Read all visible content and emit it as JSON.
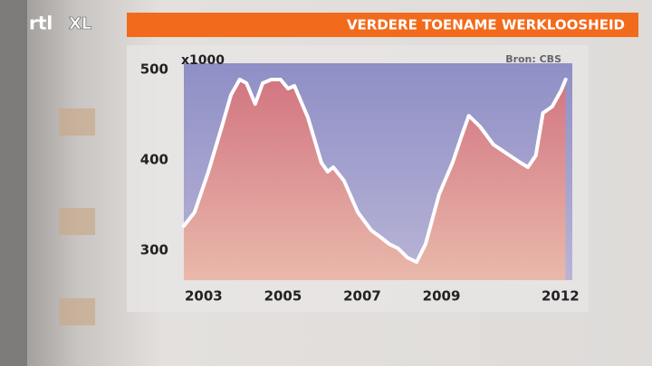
{
  "logo": [
    "rtl",
    "XL"
  ],
  "chart_data": {
    "type": "area",
    "title": "VERDERE TOENAME WERKLOOSHEID",
    "unit_label": "x1000",
    "source": "Bron: CBS",
    "line_color": "#ffffff",
    "fill_color": "#e0786a",
    "x": [
      2002.5,
      2002.77,
      2003.12,
      2003.46,
      2003.69,
      2003.91,
      2004.08,
      2004.3,
      2004.49,
      2004.71,
      2004.94,
      2005.13,
      2005.29,
      2005.63,
      2005.97,
      2006.13,
      2006.27,
      2006.54,
      2006.89,
      2007.23,
      2007.45,
      2007.68,
      2007.91,
      2008.14,
      2008.37,
      2008.6,
      2008.94,
      2009.28,
      2009.51,
      2009.69,
      2009.97,
      2010.31,
      2010.65,
      2010.99,
      2011.18,
      2011.38,
      2011.56,
      2011.79,
      2012.02,
      2012.13
    ],
    "values": [
      327,
      342,
      387,
      437,
      472,
      489,
      485,
      462,
      485,
      489,
      489,
      479,
      482,
      447,
      397,
      387,
      392,
      377,
      342,
      322,
      315,
      307,
      302,
      292,
      287,
      307,
      362,
      397,
      427,
      449,
      437,
      417,
      407,
      397,
      392,
      405,
      452,
      459,
      477,
      489
    ],
    "xlim": [
      2002.5,
      2012.3
    ],
    "xticks": [
      2003,
      2005,
      2007,
      2009,
      2012
    ],
    "ylim": [
      267,
      507
    ],
    "yticks": [
      300,
      400,
      500
    ]
  }
}
